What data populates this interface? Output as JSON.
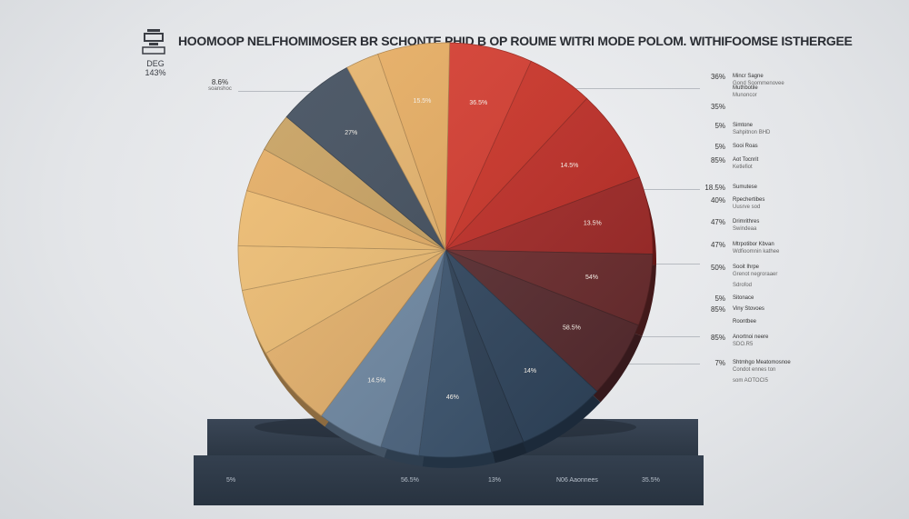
{
  "title": "HOOMOOP NELFHOMIMOSER BR SCHONTE PHID B OP ROUME WITRI MODE POLOM. WITHIFOOMSE ISTHERGEE",
  "logo": {
    "text1": "DEG",
    "text2": "143%"
  },
  "left_note": {
    "pct": "8.6%",
    "label": "soanshoc"
  },
  "chart_data": {
    "type": "pie",
    "title": "HOOMOOP NELFHOMIMOSER BR SCHONTE PHID B OP ROUME WITRI MODE POLOM. WITHIFOOMSE ISTHERGEE",
    "slices": [
      {
        "label": "36.5%",
        "value": 7.5,
        "color": "#d8392c"
      },
      {
        "label": "",
        "value": 6.0,
        "color": "#cf3024"
      },
      {
        "label": "14.5%",
        "value": 8.5,
        "color": "#c42b23"
      },
      {
        "label": "13.5%",
        "value": 7.0,
        "color": "#a52624"
      },
      {
        "label": "54%",
        "value": 6.5,
        "color": "#6e2a2c"
      },
      {
        "label": "58.5%",
        "value": 7.0,
        "color": "#5a2a2e"
      },
      {
        "label": "14%",
        "value": 8.0,
        "color": "#2f4660"
      },
      {
        "label": "",
        "value": 3.0,
        "color": "#2b3f56"
      },
      {
        "label": "46%",
        "value": 6.5,
        "color": "#3b5571"
      },
      {
        "label": "",
        "value": 3.5,
        "color": "#4d6784"
      },
      {
        "label": "14.5%",
        "value": 6.0,
        "color": "#6f8aa6"
      },
      {
        "label": "",
        "value": 7.5,
        "color": "#e9b36a"
      },
      {
        "label": "",
        "value": 6.0,
        "color": "#f0bd70"
      },
      {
        "label": "",
        "value": 4.0,
        "color": "#f1bf72"
      },
      {
        "label": "",
        "value": 5.0,
        "color": "#f0bc6e"
      },
      {
        "label": "",
        "value": 4.0,
        "color": "#e6ad62"
      },
      {
        "label": "",
        "value": 3.5,
        "color": "#c9a15e"
      },
      {
        "label": "27%",
        "value": 7.0,
        "color": "#3e4b5b"
      },
      {
        "label": "",
        "value": 3.0,
        "color": "#e8b46a"
      },
      {
        "label": "15.5%",
        "value": 6.5,
        "color": "#e9ad5f"
      }
    ]
  },
  "side_labels": [
    {
      "pct": "36%",
      "name": "Mincr Sagne",
      "sub": "Gond Soommenovee"
    },
    {
      "pct": "",
      "name": "Muthbotile",
      "sub": "Munoncor"
    },
    {
      "pct": "35%",
      "name": "",
      "sub": ""
    },
    {
      "pct": "5%",
      "name": "Simtone",
      "sub": "Sahpitnon BHD"
    },
    {
      "pct": "5%",
      "name": "Sooi Roas",
      "sub": ""
    },
    {
      "pct": "85%",
      "name": "Aot Tocnrit",
      "sub": "Ketlefiot"
    },
    {
      "pct": "18.5%",
      "name": "Sumutese",
      "sub": ""
    },
    {
      "pct": "40%",
      "name": "Rpechertibes",
      "sub": "Uusrve sod"
    },
    {
      "pct": "47%",
      "name": "Drimrithres",
      "sub": "Swindeaa"
    },
    {
      "pct": "47%",
      "name": "Mtrpotibor Kbvan",
      "sub": "Wdfioomnin kathee"
    },
    {
      "pct": "50%",
      "name": "Sooit Ihrpe",
      "sub": "Grenot negroraaer"
    },
    {
      "pct": "",
      "name": "",
      "sub": "Sdrofod"
    },
    {
      "pct": "5%",
      "name": "Sitonace",
      "sub": ""
    },
    {
      "pct": "85%",
      "name": "Viny Stovoes",
      "sub": ""
    },
    {
      "pct": "",
      "name": "Roontbee",
      "sub": ""
    },
    {
      "pct": "85%",
      "name": "Anortnoi neere",
      "sub": "SDO.R5"
    },
    {
      "pct": "7%",
      "name": "Shtmhgo Meatomosnoe",
      "sub": "Condot ennes ton"
    },
    {
      "pct": "",
      "name": "",
      "sub": "som AOTOCI5"
    }
  ],
  "pedestal_labels": [
    "5%",
    "56.5%",
    "13%",
    "N06 Aaonnees",
    "35.5%"
  ]
}
